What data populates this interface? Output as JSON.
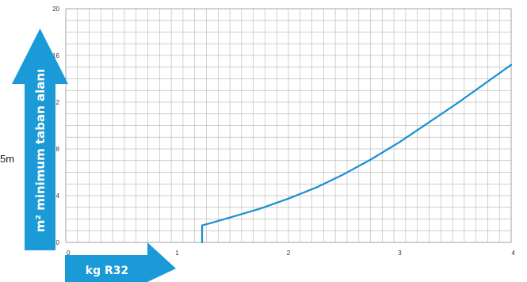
{
  "side_note": "5m",
  "colors": {
    "arrow": "#1A9AD6",
    "curve": "#1A8FD1",
    "grid": "#BFBFBF",
    "tick_text": "#333333"
  },
  "chart_data": {
    "type": "line",
    "title": "",
    "xlabel": "kg R32",
    "ylabel": "m² minimum taban alanı",
    "xlim": [
      0,
      4
    ],
    "ylim": [
      0,
      20
    ],
    "x_ticks": [
      "0",
      "1",
      "2",
      "3",
      "4"
    ],
    "y_ticks": [
      "0",
      "4",
      "8",
      "12",
      "16",
      "20"
    ],
    "grid": true,
    "series": [
      {
        "x": [
          1.224,
          1.224,
          1.3,
          1.5,
          1.75,
          2.0,
          2.25,
          2.5,
          2.75,
          3.0,
          3.25,
          3.5,
          3.75,
          4.0
        ],
        "y": [
          0,
          1.45,
          1.65,
          2.2,
          2.9,
          3.75,
          4.7,
          5.85,
          7.15,
          8.6,
          10.2,
          11.8,
          13.5,
          15.2
        ]
      }
    ]
  }
}
